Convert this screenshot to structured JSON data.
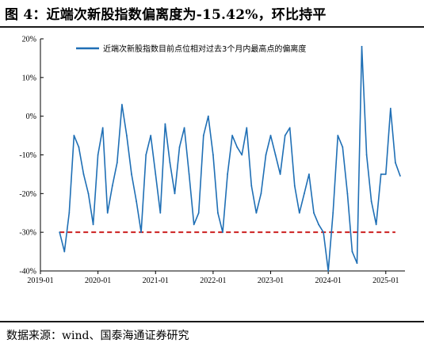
{
  "title": "图 4：近端次新股指数偏离度为-15.42%，环比持平",
  "source": "数据来源：wind、国泰海通证券研究",
  "chart_data": {
    "type": "line",
    "title": "图 4：近端次新股指数偏离度为-15.42%，环比持平",
    "xlabel": "",
    "ylabel": "",
    "ylim": [
      -40,
      20
    ],
    "y_ticks": [
      "20%",
      "10%",
      "0%",
      "-10%",
      "-20%",
      "-30%",
      "-40%"
    ],
    "y_tick_values": [
      20,
      10,
      0,
      -10,
      -20,
      -30,
      -40
    ],
    "x_ticks": [
      "2019-01",
      "2020-01",
      "2021-01",
      "2022-01",
      "2023-01",
      "2024-01",
      "2025-01"
    ],
    "xlim": [
      "2019-01",
      "2025-05"
    ],
    "legend_position": "top",
    "grid": false,
    "colors": {
      "series": "#1f6fb5",
      "reference": "#cc1f1f"
    },
    "reference_line": {
      "y": -30,
      "style": "dashed",
      "x_start": "2019-05",
      "x_end": "2025-03"
    },
    "series": [
      {
        "name": "近端次新股指数目前点位相对过去3个月内最高点的偏离度",
        "x": [
          "2019-05",
          "2019-06",
          "2019-07",
          "2019-08",
          "2019-09",
          "2019-10",
          "2019-11",
          "2019-12",
          "2020-01",
          "2020-02",
          "2020-03",
          "2020-04",
          "2020-05",
          "2020-06",
          "2020-07",
          "2020-08",
          "2020-09",
          "2020-10",
          "2020-11",
          "2020-12",
          "2021-01",
          "2021-02",
          "2021-03",
          "2021-04",
          "2021-05",
          "2021-06",
          "2021-07",
          "2021-08",
          "2021-09",
          "2021-10",
          "2021-11",
          "2021-12",
          "2022-01",
          "2022-02",
          "2022-03",
          "2022-04",
          "2022-05",
          "2022-06",
          "2022-07",
          "2022-08",
          "2022-09",
          "2022-10",
          "2022-11",
          "2022-12",
          "2023-01",
          "2023-02",
          "2023-03",
          "2023-04",
          "2023-05",
          "2023-06",
          "2023-07",
          "2023-08",
          "2023-09",
          "2023-10",
          "2023-11",
          "2023-12",
          "2024-01",
          "2024-02",
          "2024-03",
          "2024-04",
          "2024-05",
          "2024-06",
          "2024-07",
          "2024-08",
          "2024-09",
          "2024-10",
          "2024-11",
          "2024-12",
          "2025-01",
          "2025-02",
          "2025-03",
          "2025-04"
        ],
        "values": [
          -30,
          -35,
          -25,
          -5,
          -8,
          -15,
          -20,
          -28,
          -10,
          -3,
          -25,
          -18,
          -12,
          3,
          -5,
          -15,
          -22,
          -30,
          -10,
          -5,
          -15,
          -25,
          -2,
          -12,
          -20,
          -8,
          -3,
          -15,
          -28,
          -25,
          -5,
          0,
          -10,
          -25,
          -30,
          -15,
          -5,
          -8,
          -10,
          -3,
          -18,
          -25,
          -20,
          -10,
          -5,
          -10,
          -15,
          -5,
          -3,
          -18,
          -25,
          -20,
          -15,
          -25,
          -28,
          -30,
          -40,
          -25,
          -5,
          -8,
          -20,
          -35,
          -38,
          18,
          -10,
          -22,
          -28,
          -15,
          -15,
          2,
          -12,
          -15.42
        ]
      }
    ]
  }
}
